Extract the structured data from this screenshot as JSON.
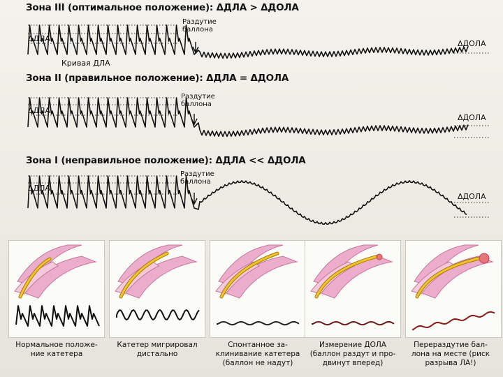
{
  "zones": [
    {
      "id": "zone3",
      "title": "Зона III (оптимальное положение): ΔДЛА > ΔДОЛА",
      "left_label": "ΔДЛА",
      "right_label": "ΔДОЛА",
      "curve_label": "Кривая ДЛА",
      "inflation_label_line1": "Раздутие",
      "inflation_label_line2": "баллона"
    },
    {
      "id": "zone2",
      "title": "Зона II (правильное положение): ΔДЛА = ΔДОЛА",
      "left_label": "ΔДЛА",
      "right_label": "ΔДОЛА",
      "inflation_label_line1": "Раздутие",
      "inflation_label_line2": "баллона"
    },
    {
      "id": "zone1",
      "title": "Зона I (неправильное положение): ΔДЛА << ΔДОЛА",
      "left_label": "ΔДЛА",
      "right_label": "ΔДОЛА",
      "inflation_label_line1": "Раздутие",
      "inflation_label_line2": "баллона"
    }
  ],
  "panels": [
    {
      "caption_line1": "Нормальное положе-",
      "caption_line2": "ние катетера",
      "caption_line3": "",
      "wave": "normal",
      "wave_color": "#111111"
    },
    {
      "caption_line1": "Катетер мигрировал",
      "caption_line2": "дистально",
      "caption_line3": "",
      "wave": "damped",
      "wave_color": "#111111"
    },
    {
      "caption_line1": "Спонтанное за-",
      "caption_line2": "клинивание катетера",
      "caption_line3": "(баллон не надут)",
      "wave": "wedge",
      "wave_color": "#222222"
    },
    {
      "caption_line1": "Измерение ДОЛА",
      "caption_line2": "(баллон раздут и про-",
      "caption_line3": "двинут вперед)",
      "wave": "wedge",
      "wave_color": "#6b1a1a"
    },
    {
      "caption_line1": "Перераздутие бал-",
      "caption_line2": "лона на месте (риск",
      "caption_line3": "разрыва ЛА!)",
      "wave": "rising",
      "wave_color": "#8b1a1a"
    }
  ],
  "colors": {
    "trace": "#111111",
    "dotted_line": "#333333",
    "vessel_fill": "#ecaccb",
    "vessel_edge": "#c7799c",
    "catheter": "#f2c230",
    "catheter_edge": "#a67c00",
    "balloon": "#e8737a"
  }
}
